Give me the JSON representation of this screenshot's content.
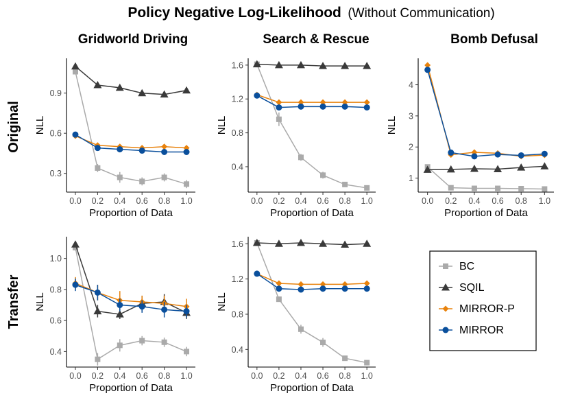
{
  "figure": {
    "title_bold": "Policy Negative Log-Likelihood",
    "title_rest": "(Without Communication)",
    "col_titles": [
      "Gridworld Driving",
      "Search & Rescue",
      "Bomb Defusal"
    ],
    "row_labels": [
      "Original",
      "Transfer"
    ]
  },
  "colors": {
    "BC": "#aaaaaa",
    "SQIL": "#3a3a3a",
    "MIRROR-P": "#e8820c",
    "MIRROR": "#0a4f9c"
  },
  "legend": {
    "items": [
      {
        "name": "BC",
        "marker": "square"
      },
      {
        "name": "SQIL",
        "marker": "triangle"
      },
      {
        "name": "MIRROR-P",
        "marker": "diamond"
      },
      {
        "name": "MIRROR",
        "marker": "circle"
      }
    ]
  },
  "chart_data": [
    {
      "id": "gridworld-original",
      "type": "line",
      "title": "Gridworld Driving",
      "row": "Original",
      "xlabel": "Proportion of Data",
      "ylabel": "NLL",
      "x": [
        0.0,
        0.2,
        0.4,
        0.6,
        0.8,
        1.0
      ],
      "xticks": [
        "0.0",
        "0.2",
        "0.4",
        "0.6",
        "0.8",
        "1.0"
      ],
      "ylim": [
        0.16,
        1.16
      ],
      "yticks": [
        0.3,
        0.6,
        0.9
      ],
      "ytick_labels": [
        "0.3",
        "0.6",
        "0.9"
      ],
      "series": [
        {
          "name": "BC",
          "values": [
            1.06,
            0.34,
            0.27,
            0.24,
            0.27,
            0.22
          ],
          "err": [
            0.02,
            0.03,
            0.04,
            0.03,
            0.03,
            0.03
          ]
        },
        {
          "name": "SQIL",
          "values": [
            1.1,
            0.96,
            0.94,
            0.9,
            0.89,
            0.92
          ],
          "err": [
            0.01,
            0.01,
            0.01,
            0.02,
            0.02,
            0.01
          ]
        },
        {
          "name": "MIRROR-P",
          "values": [
            0.58,
            0.51,
            0.5,
            0.49,
            0.5,
            0.49
          ],
          "err": [
            0.01,
            0.01,
            0.01,
            0.01,
            0.01,
            0.01
          ]
        },
        {
          "name": "MIRROR",
          "values": [
            0.59,
            0.49,
            0.48,
            0.47,
            0.46,
            0.46
          ],
          "err": [
            0.01,
            0.01,
            0.01,
            0.01,
            0.01,
            0.01
          ]
        }
      ]
    },
    {
      "id": "search-original",
      "type": "line",
      "title": "Search & Rescue",
      "row": "Original",
      "xlabel": "Proportion of Data",
      "ylabel": "NLL",
      "x": [
        0.0,
        0.2,
        0.4,
        0.6,
        0.8,
        1.0
      ],
      "xticks": [
        "0.0",
        "0.2",
        "0.4",
        "0.6",
        "0.8",
        "1.0"
      ],
      "ylim": [
        0.1,
        1.68
      ],
      "yticks": [
        0.4,
        0.8,
        1.2,
        1.6
      ],
      "ytick_labels": [
        "0.4",
        "0.8",
        "1.2",
        "1.6"
      ],
      "series": [
        {
          "name": "BC",
          "values": [
            1.61,
            0.96,
            0.51,
            0.3,
            0.19,
            0.15
          ],
          "err": [
            0.01,
            0.08,
            0.04,
            0.04,
            0.02,
            0.03
          ]
        },
        {
          "name": "SQIL",
          "values": [
            1.61,
            1.6,
            1.6,
            1.59,
            1.59,
            1.59
          ],
          "err": [
            0.01,
            0.01,
            0.01,
            0.01,
            0.01,
            0.01
          ]
        },
        {
          "name": "MIRROR-P",
          "values": [
            1.25,
            1.16,
            1.16,
            1.16,
            1.16,
            1.16
          ],
          "err": [
            0.01,
            0.01,
            0.01,
            0.01,
            0.01,
            0.01
          ]
        },
        {
          "name": "MIRROR",
          "values": [
            1.24,
            1.1,
            1.11,
            1.11,
            1.11,
            1.1
          ],
          "err": [
            0.01,
            0.01,
            0.01,
            0.01,
            0.01,
            0.01
          ]
        }
      ]
    },
    {
      "id": "bomb-original",
      "type": "line",
      "title": "Bomb Defusal",
      "row": "Original",
      "xlabel": "Proportion of Data",
      "ylabel": "NLL",
      "x": [
        0.0,
        0.2,
        0.4,
        0.6,
        0.8,
        1.0
      ],
      "xticks": [
        "0.0",
        "0.2",
        "0.4",
        "0.6",
        "0.8",
        "1.0"
      ],
      "ylim": [
        0.55,
        4.85
      ],
      "yticks": [
        1,
        2,
        3,
        4
      ],
      "ytick_labels": [
        "1",
        "2",
        "3",
        "4"
      ],
      "series": [
        {
          "name": "BC",
          "values": [
            1.36,
            0.69,
            0.67,
            0.67,
            0.66,
            0.65
          ],
          "err": [
            0.04,
            0.03,
            0.02,
            0.02,
            0.02,
            0.02
          ]
        },
        {
          "name": "SQIL",
          "values": [
            1.27,
            1.28,
            1.3,
            1.29,
            1.34,
            1.38
          ],
          "err": [
            0.04,
            0.04,
            0.05,
            0.05,
            0.04,
            0.04
          ]
        },
        {
          "name": "MIRROR-P",
          "values": [
            4.63,
            1.75,
            1.83,
            1.8,
            1.7,
            1.74
          ],
          "err": [
            0.05,
            0.06,
            0.08,
            0.06,
            0.07,
            0.05
          ]
        },
        {
          "name": "MIRROR",
          "values": [
            4.48,
            1.82,
            1.7,
            1.76,
            1.73,
            1.78
          ],
          "err": [
            0.05,
            0.05,
            0.05,
            0.05,
            0.05,
            0.05
          ]
        }
      ]
    },
    {
      "id": "gridworld-transfer",
      "type": "line",
      "title": "Gridworld Driving",
      "row": "Transfer",
      "xlabel": "Proportion of Data",
      "ylabel": "NLL",
      "x": [
        0.0,
        0.2,
        0.4,
        0.6,
        0.8,
        1.0
      ],
      "xticks": [
        "0.0",
        "0.2",
        "0.4",
        "0.6",
        "0.8",
        "1.0"
      ],
      "ylim": [
        0.3,
        1.14
      ],
      "yticks": [
        0.4,
        0.6,
        0.8,
        1.0
      ],
      "ytick_labels": [
        "0.4",
        "0.6",
        "0.8",
        "1.0"
      ],
      "series": [
        {
          "name": "BC",
          "values": [
            1.07,
            0.35,
            0.44,
            0.47,
            0.46,
            0.4
          ],
          "err": [
            0.02,
            0.04,
            0.04,
            0.03,
            0.03,
            0.03
          ]
        },
        {
          "name": "SQIL",
          "values": [
            1.09,
            0.66,
            0.64,
            0.71,
            0.72,
            0.65
          ],
          "err": [
            0.01,
            0.04,
            0.03,
            0.05,
            0.05,
            0.04
          ]
        },
        {
          "name": "MIRROR-P",
          "values": [
            0.84,
            0.78,
            0.73,
            0.72,
            0.71,
            0.69
          ],
          "err": [
            0.04,
            0.05,
            0.06,
            0.04,
            0.05,
            0.05
          ]
        },
        {
          "name": "MIRROR",
          "values": [
            0.83,
            0.78,
            0.7,
            0.69,
            0.67,
            0.66
          ],
          "err": [
            0.04,
            0.05,
            0.04,
            0.04,
            0.05,
            0.04
          ]
        }
      ]
    },
    {
      "id": "search-transfer",
      "type": "line",
      "title": "Search & Rescue",
      "row": "Transfer",
      "xlabel": "Proportion of Data",
      "ylabel": "NLL",
      "x": [
        0.0,
        0.2,
        0.4,
        0.6,
        0.8,
        1.0
      ],
      "xticks": [
        "0.0",
        "0.2",
        "0.4",
        "0.6",
        "0.8",
        "1.0"
      ],
      "ylim": [
        0.2,
        1.68
      ],
      "yticks": [
        0.4,
        0.8,
        1.2,
        1.6
      ],
      "ytick_labels": [
        "0.4",
        "0.8",
        "1.2",
        "1.6"
      ],
      "series": [
        {
          "name": "BC",
          "values": [
            1.61,
            0.97,
            0.63,
            0.48,
            0.3,
            0.25
          ],
          "err": [
            0.01,
            0.03,
            0.05,
            0.05,
            0.02,
            0.01
          ]
        },
        {
          "name": "SQIL",
          "values": [
            1.61,
            1.6,
            1.61,
            1.6,
            1.59,
            1.6
          ],
          "err": [
            0.01,
            0.01,
            0.01,
            0.01,
            0.01,
            0.01
          ]
        },
        {
          "name": "MIRROR-P",
          "values": [
            1.26,
            1.15,
            1.14,
            1.14,
            1.14,
            1.15
          ],
          "err": [
            0.01,
            0.01,
            0.01,
            0.01,
            0.01,
            0.01
          ]
        },
        {
          "name": "MIRROR",
          "values": [
            1.26,
            1.09,
            1.08,
            1.09,
            1.09,
            1.09
          ],
          "err": [
            0.01,
            0.01,
            0.01,
            0.01,
            0.01,
            0.01
          ]
        }
      ]
    }
  ]
}
